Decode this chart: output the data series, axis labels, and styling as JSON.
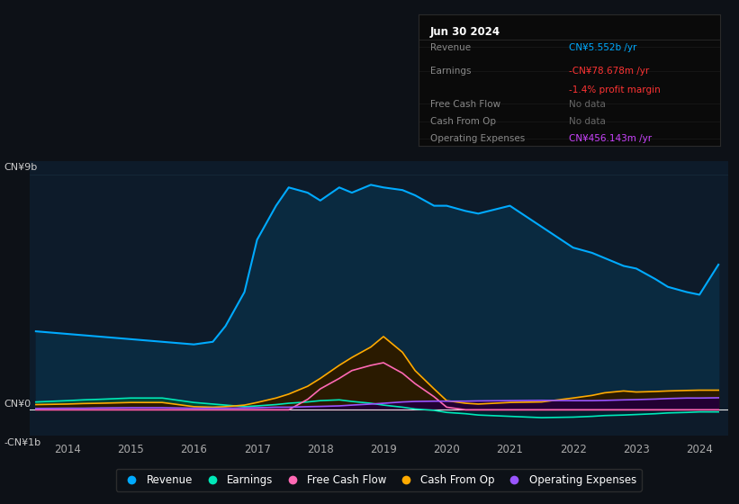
{
  "background_color": "#0d1117",
  "plot_bg_color": "#0d1b2a",
  "x_years": [
    2013.5,
    2014.0,
    2014.25,
    2014.5,
    2015.0,
    2015.5,
    2016.0,
    2016.3,
    2016.5,
    2016.8,
    2017.0,
    2017.3,
    2017.5,
    2017.8,
    2018.0,
    2018.3,
    2018.5,
    2018.8,
    2019.0,
    2019.3,
    2019.5,
    2019.8,
    2020.0,
    2020.3,
    2020.5,
    2021.0,
    2021.5,
    2022.0,
    2022.3,
    2022.5,
    2022.8,
    2023.0,
    2023.3,
    2023.5,
    2023.8,
    2024.0,
    2024.3
  ],
  "revenue": [
    3.0,
    2.9,
    2.85,
    2.8,
    2.7,
    2.6,
    2.5,
    2.6,
    3.2,
    4.5,
    6.5,
    7.8,
    8.5,
    8.3,
    8.0,
    8.5,
    8.3,
    8.6,
    8.5,
    8.4,
    8.2,
    7.8,
    7.8,
    7.6,
    7.5,
    7.8,
    7.0,
    6.2,
    6.0,
    5.8,
    5.5,
    5.4,
    5.0,
    4.7,
    4.5,
    4.4,
    5.55
  ],
  "earnings": [
    0.3,
    0.35,
    0.38,
    0.4,
    0.45,
    0.45,
    0.28,
    0.22,
    0.18,
    0.12,
    0.15,
    0.2,
    0.25,
    0.3,
    0.35,
    0.38,
    0.32,
    0.25,
    0.18,
    0.1,
    0.03,
    -0.02,
    -0.1,
    -0.15,
    -0.2,
    -0.25,
    -0.3,
    -0.28,
    -0.25,
    -0.22,
    -0.2,
    -0.18,
    -0.15,
    -0.12,
    -0.1,
    -0.08,
    -0.08
  ],
  "free_cash_flow": [
    0.0,
    0.0,
    0.0,
    0.0,
    0.0,
    0.0,
    0.0,
    0.0,
    0.0,
    0.0,
    0.0,
    0.0,
    0.0,
    0.4,
    0.8,
    1.2,
    1.5,
    1.7,
    1.8,
    1.4,
    1.0,
    0.5,
    0.1,
    0.0,
    0.0,
    0.0,
    0.0,
    0.0,
    0.0,
    0.0,
    0.0,
    0.0,
    0.0,
    0.0,
    0.0,
    0.0,
    0.0
  ],
  "cash_from_op": [
    0.2,
    0.22,
    0.24,
    0.25,
    0.28,
    0.28,
    0.12,
    0.1,
    0.12,
    0.18,
    0.28,
    0.45,
    0.6,
    0.9,
    1.2,
    1.7,
    2.0,
    2.4,
    2.8,
    2.2,
    1.5,
    0.8,
    0.35,
    0.25,
    0.22,
    0.28,
    0.3,
    0.45,
    0.55,
    0.65,
    0.72,
    0.68,
    0.7,
    0.72,
    0.74,
    0.75,
    0.75
  ],
  "op_expenses": [
    0.05,
    0.06,
    0.06,
    0.07,
    0.08,
    0.08,
    0.06,
    0.06,
    0.06,
    0.07,
    0.08,
    0.1,
    0.1,
    0.12,
    0.13,
    0.15,
    0.18,
    0.22,
    0.25,
    0.3,
    0.32,
    0.33,
    0.33,
    0.33,
    0.34,
    0.35,
    0.36,
    0.35,
    0.35,
    0.36,
    0.38,
    0.39,
    0.41,
    0.43,
    0.45,
    0.45,
    0.46
  ],
  "revenue_color": "#00aaff",
  "revenue_fill": "#0a2a40",
  "earnings_color": "#00e8b8",
  "earnings_fill_pos": "#004433",
  "earnings_fill_neg": "#002233",
  "fcf_color": "#ff69b4",
  "fcf_fill": "#3a1020",
  "cashop_color": "#ffaa00",
  "cashop_fill": "#2a1a00",
  "opex_color": "#9955ff",
  "opex_fill": "#220033",
  "ylim": [
    -1.0,
    9.5
  ],
  "xticks": [
    2014,
    2015,
    2016,
    2017,
    2018,
    2019,
    2020,
    2021,
    2022,
    2023,
    2024
  ],
  "legend_items": [
    "Revenue",
    "Earnings",
    "Free Cash Flow",
    "Cash From Op",
    "Operating Expenses"
  ],
  "legend_colors": [
    "#00aaff",
    "#00e8b8",
    "#ff69b4",
    "#ffaa00",
    "#9955ff"
  ]
}
